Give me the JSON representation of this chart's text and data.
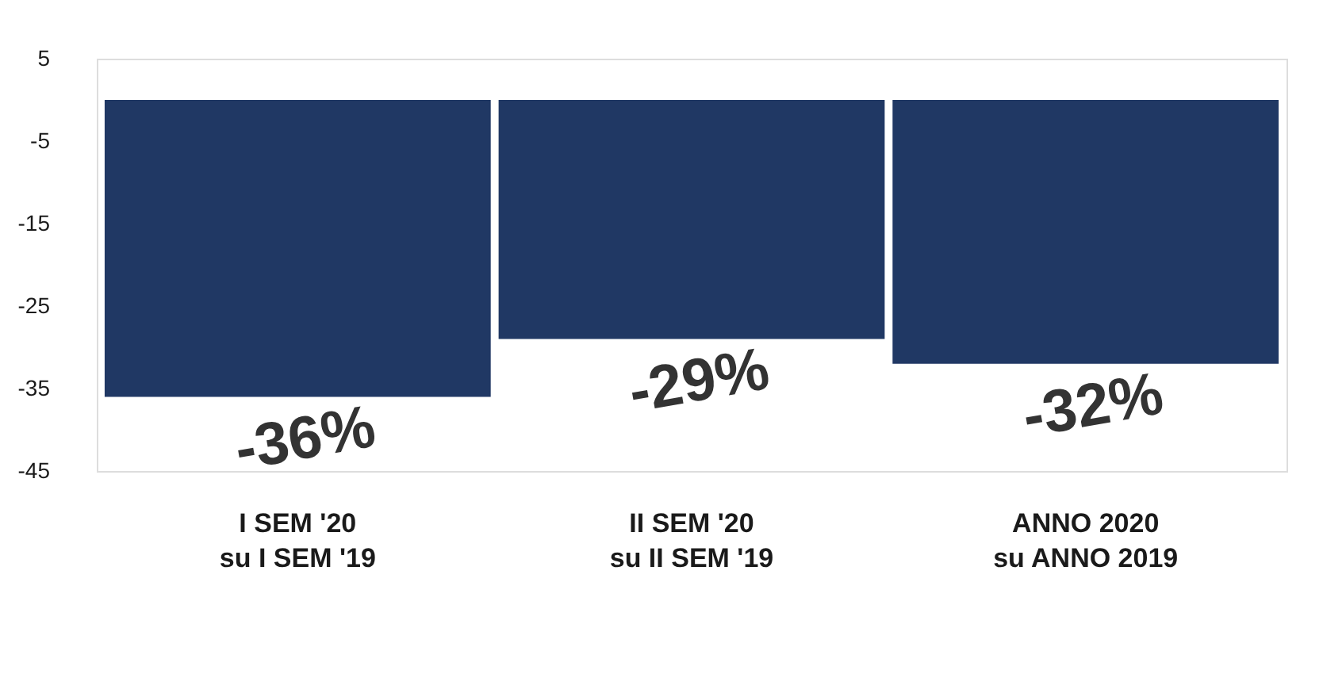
{
  "chart_data": {
    "type": "bar",
    "categories": [
      "I SEM '20\nsu I SEM '19",
      "II SEM '20\nsu II SEM '19",
      "ANNO 2020\nsu ANNO 2019"
    ],
    "values": [
      -36,
      -29,
      -32
    ],
    "color": "#203864",
    "value_labels": [
      "-36%",
      "-29%",
      "-32%"
    ],
    "ylim": [
      -45,
      5
    ],
    "yticks": [
      5,
      -5,
      -15,
      -25,
      -35,
      -45
    ],
    "grid": false
  }
}
